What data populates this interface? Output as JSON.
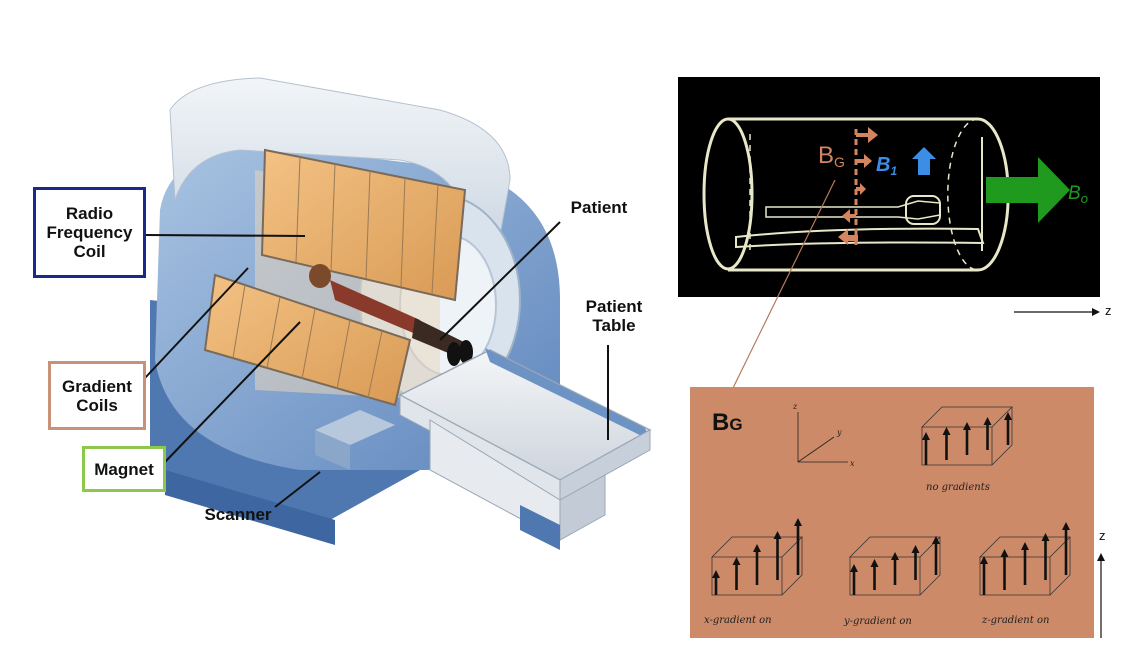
{
  "labels": {
    "rf_coil": "Radio\nFrequency\nCoil",
    "gradient_coils": "Gradient\nCoils",
    "magnet": "Magnet",
    "patient": "Patient",
    "patient_table": "Patient\nTable",
    "scanner": "Scanner"
  },
  "box_colors": {
    "rf_coil": "#1a2a8c",
    "gradient_coils": "#c8927a",
    "magnet": "#8cc84b"
  },
  "bore": {
    "bg_label_main": "B",
    "bg_label_sub": "G",
    "b1_label_main": "B",
    "b1_label_sub": "1",
    "b0_label_main": "B",
    "b0_label_sub": "o",
    "colors": {
      "bg": "#d4855f",
      "b1": "#3b8de6",
      "b0": "#1f9a1f",
      "outline": "#e8e8c8"
    }
  },
  "z_axis_top": "z",
  "gradients": {
    "title_main": "B",
    "title_sub": "G",
    "axes": {
      "x": "x",
      "y": "y",
      "z": "z"
    },
    "captions": {
      "none": "no gradients",
      "x": "x-gradient on",
      "y": "y-gradient on",
      "z": "z-gradient on"
    },
    "panel_color": "#cd8a68"
  },
  "z_axis_bottom": "z"
}
